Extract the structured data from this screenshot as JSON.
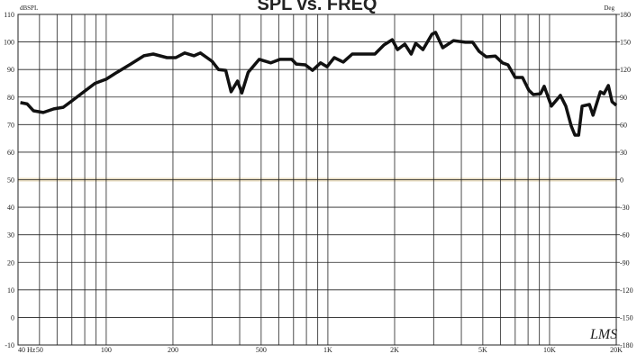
{
  "chart_data": {
    "type": "line",
    "title": "SPL vs. FREQ",
    "y_label": "dBSPL",
    "y2_label": "Deg",
    "watermark": "LMS",
    "x": [
      41,
      44,
      47,
      52,
      58,
      64,
      70,
      81,
      89,
      100,
      112,
      129,
      148,
      163,
      188,
      206,
      226,
      249,
      266,
      300,
      321,
      346,
      366,
      391,
      409,
      437,
      490,
      553,
      608,
      687,
      720,
      791,
      853,
      927,
      991,
      1069,
      1173,
      1289,
      1416,
      1630,
      1791,
      1950,
      2061,
      2223,
      2376,
      2489,
      2685,
      2946,
      3060,
      3298,
      3690,
      4169,
      4498,
      4808,
      5180,
      5689,
      6134,
      6492,
      7000,
      7550,
      8057,
      8450,
      9100,
      9460,
      10190,
      11200,
      11840,
      12530,
      13010,
      13520,
      14030,
      15130,
      15710,
      16940,
      17590,
      18420,
      19140,
      20000
    ],
    "series": [
      {
        "name": "SPL",
        "color": "#111111",
        "values": [
          78,
          77.5,
          75,
          74.4,
          75.7,
          76.3,
          78.6,
          82.5,
          85,
          86.5,
          89,
          92,
          95,
          95.6,
          94.3,
          94.3,
          96,
          95,
          96,
          93,
          90,
          89.7,
          81.9,
          85.8,
          81.5,
          89,
          93.7,
          92.4,
          93.7,
          93.7,
          92,
          91.7,
          89.7,
          92.4,
          91,
          94.3,
          92.7,
          95.6,
          95.6,
          95.6,
          98.9,
          100.8,
          97.2,
          99.2,
          95.6,
          99.5,
          97.2,
          102.8,
          103.5,
          97.9,
          100.5,
          99.9,
          99.9,
          96.6,
          94.6,
          94.9,
          92.4,
          91.7,
          87.1,
          87.1,
          82.5,
          80.9,
          81.2,
          83.9,
          76.7,
          80.6,
          76.7,
          69.5,
          66.2,
          66.2,
          76.7,
          77.3,
          73.4,
          81.9,
          81.2,
          84.2,
          78.3,
          77
        ]
      }
    ],
    "xscale": "log",
    "xlim": [
      40,
      20000
    ],
    "xticks": [
      {
        "value": 40,
        "label": "40 Hz"
      },
      50,
      100,
      200,
      500,
      {
        "value": 1000,
        "label": "1K"
      },
      {
        "value": 2000,
        "label": "2K"
      },
      {
        "value": 5000,
        "label": "5K"
      },
      {
        "value": 10000,
        "label": "10K"
      },
      {
        "value": 20000,
        "label": "20K"
      }
    ],
    "xminor": [
      60,
      70,
      80,
      90,
      300,
      400,
      600,
      700,
      800,
      900,
      3000,
      4000,
      6000,
      7000,
      8000,
      9000
    ],
    "ylim": [
      -10,
      110
    ],
    "yticks": [
      -10,
      0,
      10,
      20,
      30,
      40,
      50,
      60,
      70,
      80,
      90,
      100,
      110
    ],
    "y2lim": [
      -180,
      180
    ],
    "y2ticks": [
      -180,
      -150,
      -120,
      -90,
      -60,
      -30,
      0,
      30,
      60,
      90,
      120,
      150,
      180
    ],
    "reference_line": {
      "value": 50,
      "color": "#e8dcc0"
    },
    "title_color": "#e8232a",
    "grid": true
  }
}
